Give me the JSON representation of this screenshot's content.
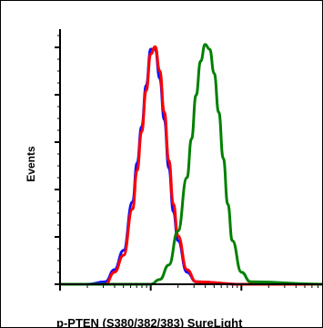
{
  "chart_data": {
    "type": "line",
    "title": "",
    "xlabel": "p-PTEN (S380/382/383) SureLight",
    "ylabel": "Events",
    "x_scale": "log",
    "grid": false,
    "legend": "none",
    "series": [
      {
        "color": "#1010ff",
        "x": [
          1.0,
          1.3,
          1.5,
          1.6,
          1.7,
          1.8,
          1.85,
          1.9,
          1.95,
          2.0,
          2.05,
          2.1,
          2.15,
          2.2,
          2.25,
          2.3,
          2.4,
          2.5,
          3.0,
          3.9
        ],
        "y": [
          0,
          0,
          1,
          6,
          14,
          34,
          50,
          65,
          82,
          97,
          97,
          85,
          68,
          48,
          30,
          18,
          5,
          1,
          0,
          0
        ]
      },
      {
        "color": "#ff0000",
        "x": [
          1.0,
          1.3,
          1.5,
          1.6,
          1.7,
          1.8,
          1.85,
          1.9,
          1.95,
          2.0,
          2.05,
          2.1,
          2.15,
          2.2,
          2.25,
          2.3,
          2.4,
          2.5,
          3.0,
          3.9
        ],
        "y": [
          0,
          0,
          0,
          5,
          12,
          31,
          47,
          63,
          80,
          95,
          98,
          88,
          71,
          51,
          33,
          20,
          6,
          1,
          0,
          0
        ]
      },
      {
        "color": "#008000",
        "x": [
          1.0,
          1.8,
          2.0,
          2.1,
          2.2,
          2.3,
          2.4,
          2.45,
          2.5,
          2.55,
          2.6,
          2.65,
          2.7,
          2.75,
          2.8,
          2.85,
          2.9,
          3.0,
          3.1,
          3.9
        ],
        "y": [
          0,
          0,
          0,
          2,
          8,
          22,
          44,
          60,
          78,
          92,
          99,
          97,
          87,
          71,
          52,
          33,
          18,
          5,
          1,
          0
        ]
      }
    ]
  }
}
